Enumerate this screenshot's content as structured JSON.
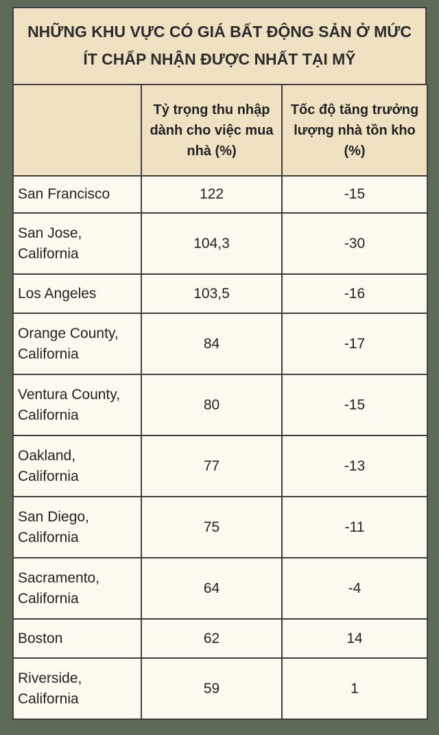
{
  "title": "NHỮNG KHU VỰC CÓ GIÁ BẤT ĐỘNG SẢN Ở MỨC ÍT CHẤP NHẬN ĐƯỢC NHẤT TẠI MỸ",
  "table": {
    "header": [
      "Tỷ trọng thu nhập dành cho việc mua nhà (%)",
      "Tốc độ tăng trưởng lượng nhà tồn kho (%)"
    ],
    "rows": [
      [
        "San Francisco",
        "122",
        "-15"
      ],
      [
        "San Jose, California",
        "104,3",
        "-30"
      ],
      [
        "Los Angeles",
        "103,5",
        "-16"
      ],
      [
        "Orange County, California",
        "84",
        "-17"
      ],
      [
        "Ventura County, California",
        "80",
        "-15"
      ],
      [
        "Oakland, California",
        "77",
        "-13"
      ],
      [
        "San Diego, California",
        "75",
        "-11"
      ],
      [
        "Sacramento, California",
        "64",
        "-4"
      ],
      [
        "Boston",
        "62",
        "14"
      ],
      [
        "Riverside, California",
        "59",
        "1"
      ]
    ]
  }
}
